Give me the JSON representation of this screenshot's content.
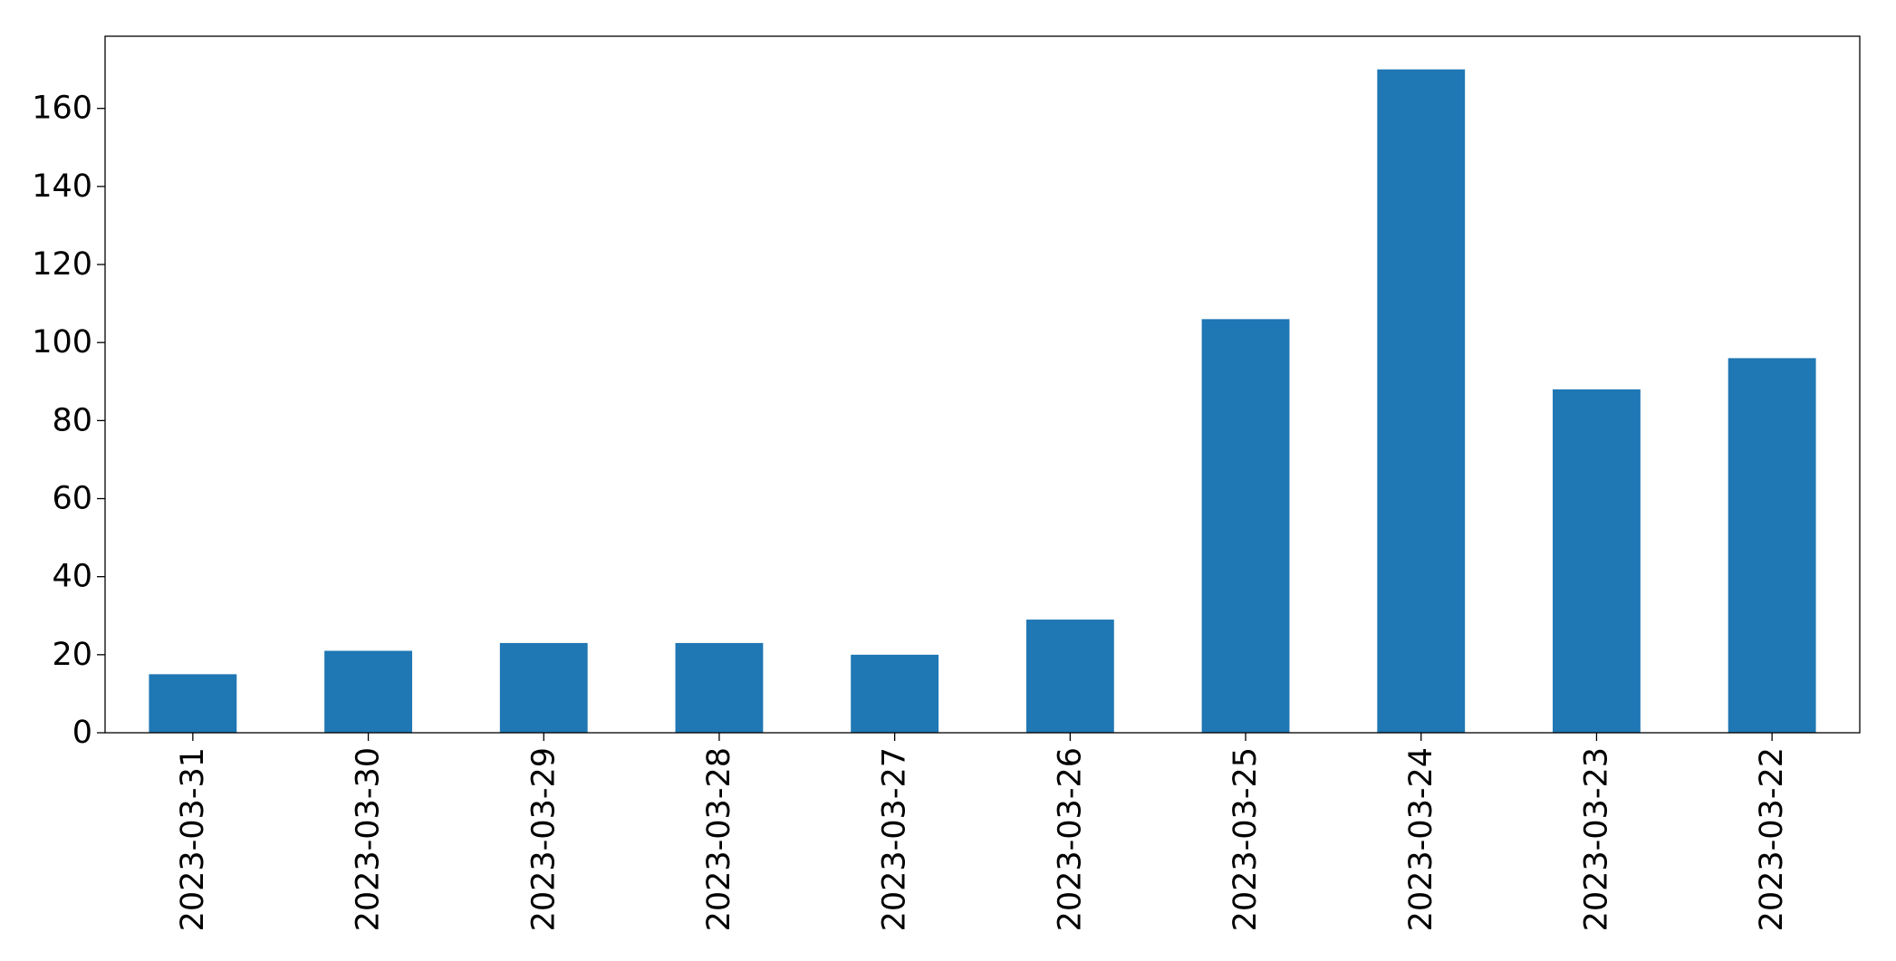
{
  "chart_data": {
    "type": "bar",
    "categories": [
      "2023-03-31",
      "2023-03-30",
      "2023-03-29",
      "2023-03-28",
      "2023-03-27",
      "2023-03-26",
      "2023-03-25",
      "2023-03-24",
      "2023-03-23",
      "2023-03-22"
    ],
    "values": [
      15,
      21,
      23,
      23,
      20,
      29,
      106,
      170,
      88,
      96
    ],
    "color": "#1f77b4",
    "ylim": [
      0,
      178.5
    ],
    "yticks": [
      0,
      20,
      40,
      60,
      80,
      100,
      120,
      140,
      160
    ],
    "grid": false
  }
}
